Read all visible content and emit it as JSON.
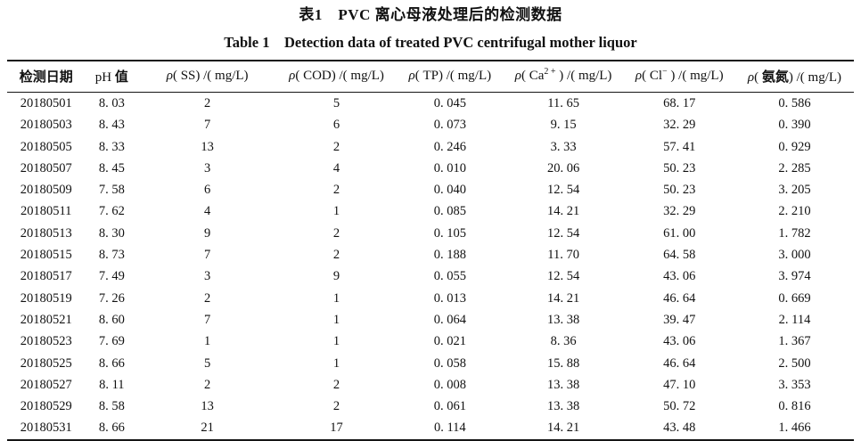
{
  "titles": {
    "caption_cn": "表1　PVC 离心母液处理后的检测数据",
    "caption_en": "Table 1　Detection data of treated PVC centrifugal mother liquor"
  },
  "colors": {
    "text": "#111111",
    "rule": "#151515",
    "background": "#ffffff"
  },
  "chart_data": {
    "type": "table",
    "title_cn": "表1　PVC 离心母液处理后的检测数据",
    "title_en": "Table 1　Detection data of treated PVC centrifugal mother liquor",
    "columns_plain": [
      "检测日期",
      "pH 值",
      "ρ(SS)/(mg/L)",
      "ρ(COD)/(mg/L)",
      "ρ(TP)/(mg/L)",
      "ρ(Ca2+)/(mg/L)",
      "ρ(Cl−)/(mg/L)",
      "ρ(氨氮)/(mg/L)"
    ],
    "rows_numeric": [
      [
        "20180501",
        8.03,
        2,
        5,
        0.045,
        11.65,
        68.17,
        0.586
      ],
      [
        "20180503",
        8.43,
        7,
        6,
        0.073,
        9.15,
        32.29,
        0.39
      ],
      [
        "20180505",
        8.33,
        13,
        2,
        0.246,
        3.33,
        57.41,
        0.929
      ],
      [
        "20180507",
        8.45,
        3,
        4,
        0.01,
        20.06,
        50.23,
        2.285
      ],
      [
        "20180509",
        7.58,
        6,
        2,
        0.04,
        12.54,
        50.23,
        3.205
      ],
      [
        "20180511",
        7.62,
        4,
        1,
        0.085,
        14.21,
        32.29,
        2.21
      ],
      [
        "20180513",
        8.3,
        9,
        2,
        0.105,
        12.54,
        61.0,
        1.782
      ],
      [
        "20180515",
        8.73,
        7,
        2,
        0.188,
        11.7,
        64.58,
        3.0
      ],
      [
        "20180517",
        7.49,
        3,
        9,
        0.055,
        12.54,
        43.06,
        3.974
      ],
      [
        "20180519",
        7.26,
        2,
        1,
        0.013,
        14.21,
        46.64,
        0.669
      ],
      [
        "20180521",
        8.6,
        7,
        1,
        0.064,
        13.38,
        39.47,
        2.114
      ],
      [
        "20180523",
        7.69,
        1,
        1,
        0.021,
        8.36,
        43.06,
        1.367
      ],
      [
        "20180525",
        8.66,
        5,
        1,
        0.058,
        15.88,
        46.64,
        2.5
      ],
      [
        "20180527",
        8.11,
        2,
        2,
        0.008,
        13.38,
        47.1,
        3.353
      ],
      [
        "20180529",
        8.58,
        13,
        2,
        0.061,
        13.38,
        50.72,
        0.816
      ],
      [
        "20180531",
        8.66,
        21,
        17,
        0.114,
        14.21,
        43.48,
        1.466
      ]
    ]
  },
  "table": {
    "columns": [
      {
        "segments": [
          {
            "t": "检测日期",
            "s": "b"
          }
        ]
      },
      {
        "segments": [
          {
            "t": "pH ",
            "s": "n"
          },
          {
            "t": "值",
            "s": "b"
          }
        ]
      },
      {
        "segments": [
          {
            "t": "ρ",
            "s": "i"
          },
          {
            "t": "( SS) /( mg/L)",
            "s": "n"
          }
        ]
      },
      {
        "segments": [
          {
            "t": "ρ",
            "s": "i"
          },
          {
            "t": "( COD) /( mg/L)",
            "s": "n"
          }
        ]
      },
      {
        "segments": [
          {
            "t": "ρ",
            "s": "i"
          },
          {
            "t": "( TP) /( mg/L)",
            "s": "n"
          }
        ]
      },
      {
        "segments": [
          {
            "t": "ρ",
            "s": "i"
          },
          {
            "t": "( Ca",
            "s": "n"
          },
          {
            "t": "2 +",
            "s": "sup"
          },
          {
            "t": " ) /( mg/L)",
            "s": "n"
          }
        ]
      },
      {
        "segments": [
          {
            "t": "ρ",
            "s": "i"
          },
          {
            "t": "( Cl",
            "s": "n"
          },
          {
            "t": "−",
            "s": "sup"
          },
          {
            "t": " ) /( mg/L)",
            "s": "n"
          }
        ]
      },
      {
        "segments": [
          {
            "t": "ρ",
            "s": "i"
          },
          {
            "t": "( ",
            "s": "n"
          },
          {
            "t": "氨氮",
            "s": "b"
          },
          {
            "t": ") /( mg/L)",
            "s": "n"
          }
        ]
      }
    ],
    "rows": [
      [
        "20180501",
        "8. 03",
        "2",
        "5",
        "0. 045",
        "11. 65",
        "68. 17",
        "0. 586"
      ],
      [
        "20180503",
        "8. 43",
        "7",
        "6",
        "0. 073",
        "9. 15",
        "32. 29",
        "0. 390"
      ],
      [
        "20180505",
        "8. 33",
        "13",
        "2",
        "0. 246",
        "3. 33",
        "57. 41",
        "0. 929"
      ],
      [
        "20180507",
        "8. 45",
        "3",
        "4",
        "0. 010",
        "20. 06",
        "50. 23",
        "2. 285"
      ],
      [
        "20180509",
        "7. 58",
        "6",
        "2",
        "0. 040",
        "12. 54",
        "50. 23",
        "3. 205"
      ],
      [
        "20180511",
        "7. 62",
        "4",
        "1",
        "0. 085",
        "14. 21",
        "32. 29",
        "2. 210"
      ],
      [
        "20180513",
        "8. 30",
        "9",
        "2",
        "0. 105",
        "12. 54",
        "61. 00",
        "1. 782"
      ],
      [
        "20180515",
        "8. 73",
        "7",
        "2",
        "0. 188",
        "11. 70",
        "64. 58",
        "3. 000"
      ],
      [
        "20180517",
        "7. 49",
        "3",
        "9",
        "0. 055",
        "12. 54",
        "43. 06",
        "3. 974"
      ],
      [
        "20180519",
        "7. 26",
        "2",
        "1",
        "0. 013",
        "14. 21",
        "46. 64",
        "0. 669"
      ],
      [
        "20180521",
        "8. 60",
        "7",
        "1",
        "0. 064",
        "13. 38",
        "39. 47",
        "2. 114"
      ],
      [
        "20180523",
        "7. 69",
        "1",
        "1",
        "0. 021",
        "8. 36",
        "43. 06",
        "1. 367"
      ],
      [
        "20180525",
        "8. 66",
        "5",
        "1",
        "0. 058",
        "15. 88",
        "46. 64",
        "2. 500"
      ],
      [
        "20180527",
        "8. 11",
        "2",
        "2",
        "0. 008",
        "13. 38",
        "47. 10",
        "3. 353"
      ],
      [
        "20180529",
        "8. 58",
        "13",
        "2",
        "0. 061",
        "13. 38",
        "50. 72",
        "0. 816"
      ],
      [
        "20180531",
        "8. 66",
        "21",
        "17",
        "0. 114",
        "14. 21",
        "43. 48",
        "1. 466"
      ]
    ]
  }
}
